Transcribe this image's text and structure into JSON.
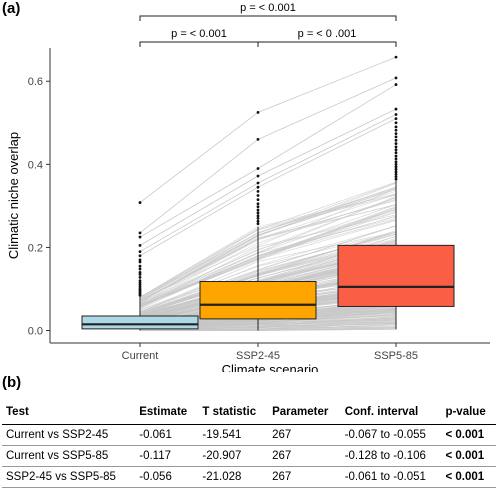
{
  "panel_a_label": "(a)",
  "panel_b_label": "(b)",
  "chart_data": {
    "type": "box",
    "xlabel": "Climate scenario",
    "ylabel": "Climatic niche overlap",
    "categories": [
      "Current",
      "SSP2-45",
      "SSP5-85"
    ],
    "ylim": [
      -0.03,
      0.68
    ],
    "yticks": [
      "0.0",
      "0.2",
      "0.4",
      "0.6"
    ],
    "colors": [
      "#add8e6",
      "#ffa500",
      "#fa5f46"
    ],
    "paired_lines": true,
    "line_color": "#c8c8c8",
    "n_pairs": 268,
    "boxes": [
      {
        "category": "Current",
        "q1": 0.004,
        "median": 0.015,
        "q3": 0.035,
        "whisker_low": 0.0,
        "whisker_high": 0.082
      },
      {
        "category": "SSP2-45",
        "q1": 0.028,
        "median": 0.062,
        "q3": 0.118,
        "whisker_low": 0.0,
        "whisker_high": 0.25
      },
      {
        "category": "SSP5-85",
        "q1": 0.058,
        "median": 0.105,
        "q3": 0.205,
        "whisker_low": 0.003,
        "whisker_high": 0.36
      }
    ],
    "outliers": [
      [
        0.308,
        0.235,
        0.225,
        0.205,
        0.19,
        0.18,
        0.17,
        0.165,
        0.155,
        0.148,
        0.14,
        0.135,
        0.128,
        0.12,
        0.115,
        0.11,
        0.105,
        0.1,
        0.096,
        0.092,
        0.088,
        0.085
      ],
      [
        0.525,
        0.46,
        0.39,
        0.372,
        0.355,
        0.345,
        0.335,
        0.325,
        0.315,
        0.305,
        0.298,
        0.29,
        0.283,
        0.276,
        0.27,
        0.263,
        0.257
      ],
      [
        0.658,
        0.608,
        0.592,
        0.533,
        0.52,
        0.51,
        0.5,
        0.49,
        0.482,
        0.474,
        0.466,
        0.458,
        0.45,
        0.442,
        0.435,
        0.428,
        0.42,
        0.413,
        0.406,
        0.4,
        0.394,
        0.388,
        0.382,
        0.376,
        0.37,
        0.364
      ]
    ],
    "brackets": [
      {
        "from": 0,
        "to": 1,
        "label": "p = < 0.001",
        "level": 1
      },
      {
        "from": 1,
        "to": 2,
        "label": "p = < 0 .001",
        "level": 1
      },
      {
        "from": 0,
        "to": 2,
        "label": "p = < 0.001",
        "level": 2
      }
    ]
  },
  "table": {
    "headers": [
      "Test",
      "Estimate",
      "T statistic",
      "Parameter",
      "Conf. interval",
      "p-value"
    ],
    "rows": [
      [
        "Current vs SSP2-45",
        "-0.061",
        "-19.541",
        "267",
        "-0.067 to -0.055",
        "< 0.001"
      ],
      [
        "Current vs SSP5-85",
        "-0.117",
        "-20.907",
        "267",
        "-0.128 to -0.106",
        "< 0.001"
      ],
      [
        "SSP2-45 vs SSP5-85",
        "-0.056",
        "-21.028",
        "267",
        "-0.061 to -0.051",
        "< 0.001"
      ]
    ]
  }
}
